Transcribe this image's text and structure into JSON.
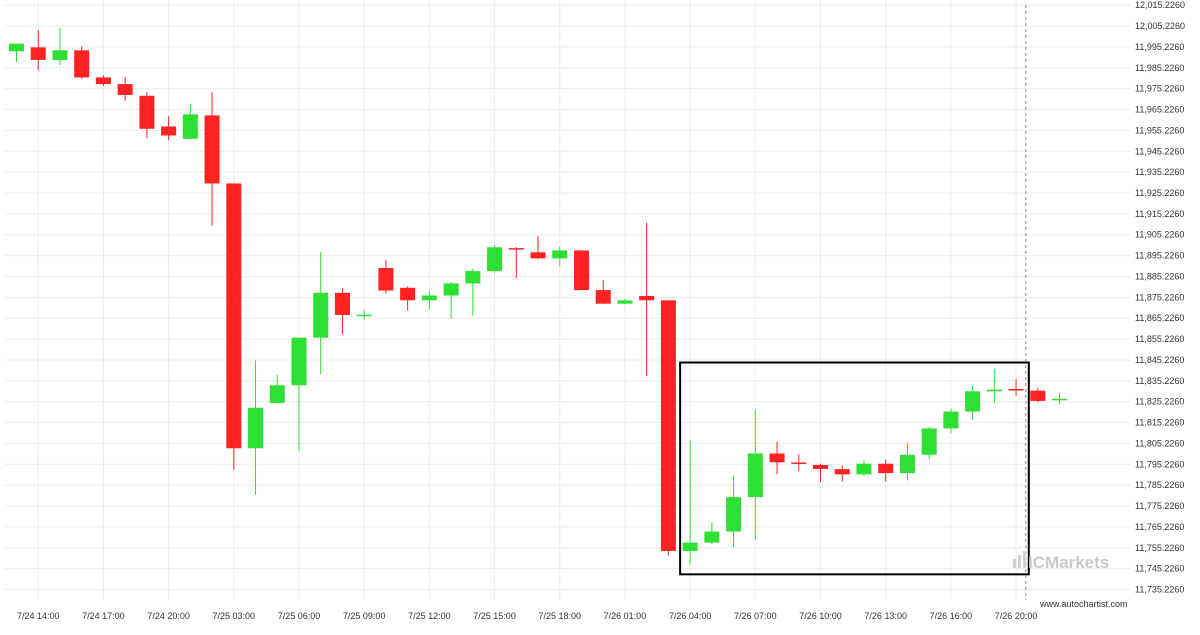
{
  "colors": {
    "up": "#2ee033",
    "down": "#ff2222",
    "grid": "#ececec",
    "pattern_box": "#000000",
    "cursor": "#888888",
    "brand": "#c9c9c9"
  },
  "brand": {
    "name": "ICMarkets"
  },
  "credit": "www.autochartist.com",
  "chart_data": {
    "type": "candlestick",
    "y_ticks": [
      "12,015.2260",
      "12,005.2260",
      "11,995.2260",
      "11,985.2260",
      "11,975.2260",
      "11,965.2260",
      "11,955.2260",
      "11,945.2260",
      "11,935.2260",
      "11,925.2260",
      "11,915.2260",
      "11,905.2260",
      "11,895.2260",
      "11,885.2260",
      "11,875.2260",
      "11,865.2260",
      "11,855.2260",
      "11,845.2260",
      "11,835.2260",
      "11,825.2260",
      "11,815.2260",
      "11,805.2260",
      "11,795.2260",
      "11,785.2260",
      "11,775.2260",
      "11,765.2260",
      "11,755.2260",
      "11,745.2260",
      "11,735.2260"
    ],
    "ylim": [
      11730.2,
      12017.7
    ],
    "x_ticks": [
      {
        "label": "7/24 14:00",
        "index": 1
      },
      {
        "label": "7/24 17:00",
        "index": 4
      },
      {
        "label": "7/24 20:00",
        "index": 7
      },
      {
        "label": "7/25 03:00",
        "index": 10
      },
      {
        "label": "7/25 06:00",
        "index": 13
      },
      {
        "label": "7/25 09:00",
        "index": 16
      },
      {
        "label": "7/25 12:00",
        "index": 19
      },
      {
        "label": "7/25 15:00",
        "index": 22
      },
      {
        "label": "7/25 18:00",
        "index": 25
      },
      {
        "label": "7/26 01:00",
        "index": 28
      },
      {
        "label": "7/26 04:00",
        "index": 31
      },
      {
        "label": "7/26 07:00",
        "index": 34
      },
      {
        "label": "7/26 10:00",
        "index": 37
      },
      {
        "label": "7/26 13:00",
        "index": 40
      },
      {
        "label": "7/26 16:00",
        "index": 43
      },
      {
        "label": "7/26 20:00",
        "index": 46
      }
    ],
    "candles": [
      {
        "o": 11993.1,
        "h": 11995.0,
        "l": 11988.0,
        "c": 11996.8
      },
      {
        "o": 11995.0,
        "h": 12003.3,
        "l": 11984.0,
        "c": 11989.0
      },
      {
        "o": 11989.0,
        "h": 12004.5,
        "l": 11986.5,
        "c": 11993.6
      },
      {
        "o": 11993.6,
        "h": 11995.5,
        "l": 11980.0,
        "c": 11980.6
      },
      {
        "o": 11980.6,
        "h": 11981.5,
        "l": 11976.5,
        "c": 11977.4
      },
      {
        "o": 11977.4,
        "h": 11980.8,
        "l": 11969.5,
        "c": 11972.2
      },
      {
        "o": 11971.8,
        "h": 11973.5,
        "l": 11951.5,
        "c": 11956.0
      },
      {
        "o": 11957.1,
        "h": 11962.0,
        "l": 11950.5,
        "c": 11952.8
      },
      {
        "o": 11951.2,
        "h": 11968.0,
        "l": 11951.0,
        "c": 11962.9
      },
      {
        "o": 11962.4,
        "h": 11973.5,
        "l": 11909.5,
        "c": 11929.8
      },
      {
        "o": 11929.8,
        "h": 11929.8,
        "l": 11792.5,
        "c": 11802.9
      },
      {
        "o": 11802.9,
        "h": 11845.0,
        "l": 11780.5,
        "c": 11822.3
      },
      {
        "o": 11824.6,
        "h": 11838.0,
        "l": 11824.5,
        "c": 11833.1
      },
      {
        "o": 11833.1,
        "h": 11856.0,
        "l": 11801.5,
        "c": 11855.9
      },
      {
        "o": 11855.9,
        "h": 11897.0,
        "l": 11838.5,
        "c": 11877.4
      },
      {
        "o": 11877.4,
        "h": 11879.5,
        "l": 11857.5,
        "c": 11866.8
      },
      {
        "o": 11866.8,
        "h": 11869.5,
        "l": 11864.5,
        "c": 11866.9
      },
      {
        "o": 11889.3,
        "h": 11893.0,
        "l": 11877.0,
        "c": 11878.5
      },
      {
        "o": 11879.8,
        "h": 11880.5,
        "l": 11869.0,
        "c": 11873.8
      },
      {
        "o": 11873.8,
        "h": 11878.5,
        "l": 11869.5,
        "c": 11876.1
      },
      {
        "o": 11876.1,
        "h": 11882.5,
        "l": 11865.0,
        "c": 11881.9
      },
      {
        "o": 11881.9,
        "h": 11889.0,
        "l": 11866.5,
        "c": 11887.8
      },
      {
        "o": 11887.8,
        "h": 11900.5,
        "l": 11887.0,
        "c": 11899.2
      },
      {
        "o": 11898.8,
        "h": 11899.3,
        "l": 11884.5,
        "c": 11898.5
      },
      {
        "o": 11896.8,
        "h": 11904.5,
        "l": 11893.5,
        "c": 11893.9
      },
      {
        "o": 11893.9,
        "h": 11899.5,
        "l": 11890.0,
        "c": 11897.7
      },
      {
        "o": 11897.7,
        "h": 11897.7,
        "l": 11878.5,
        "c": 11878.7
      },
      {
        "o": 11878.7,
        "h": 11883.5,
        "l": 11872.0,
        "c": 11872.2
      },
      {
        "o": 11872.2,
        "h": 11874.5,
        "l": 11872.0,
        "c": 11873.7
      },
      {
        "o": 11875.9,
        "h": 11911.0,
        "l": 11837.5,
        "c": 11873.8
      },
      {
        "o": 11873.8,
        "h": 11873.8,
        "l": 11751.5,
        "c": 11753.7
      },
      {
        "o": 11753.7,
        "h": 11806.5,
        "l": 11747.0,
        "c": 11757.7
      },
      {
        "o": 11757.7,
        "h": 11767.5,
        "l": 11757.0,
        "c": 11763.0
      },
      {
        "o": 11763.0,
        "h": 11790.0,
        "l": 11755.5,
        "c": 11779.5
      },
      {
        "o": 11779.5,
        "h": 11821.5,
        "l": 11759.0,
        "c": 11800.4
      },
      {
        "o": 11800.4,
        "h": 11806.0,
        "l": 11790.5,
        "c": 11796.2
      },
      {
        "o": 11796.1,
        "h": 11800.0,
        "l": 11792.0,
        "c": 11795.4
      },
      {
        "o": 11794.9,
        "h": 11795.5,
        "l": 11786.5,
        "c": 11793.0
      },
      {
        "o": 11792.9,
        "h": 11794.5,
        "l": 11787.0,
        "c": 11790.4
      },
      {
        "o": 11790.4,
        "h": 11797.0,
        "l": 11789.5,
        "c": 11795.5
      },
      {
        "o": 11795.5,
        "h": 11797.5,
        "l": 11787.0,
        "c": 11791.0
      },
      {
        "o": 11791.0,
        "h": 11805.5,
        "l": 11787.5,
        "c": 11799.8
      },
      {
        "o": 11799.8,
        "h": 11813.0,
        "l": 11797.5,
        "c": 11812.4
      },
      {
        "o": 11812.4,
        "h": 11822.0,
        "l": 11810.0,
        "c": 11820.5
      },
      {
        "o": 11820.5,
        "h": 11833.0,
        "l": 11816.5,
        "c": 11830.2
      },
      {
        "o": 11830.2,
        "h": 11841.0,
        "l": 11824.5,
        "c": 11831.0
      },
      {
        "o": 11831.3,
        "h": 11836.0,
        "l": 11828.0,
        "c": 11831.0
      },
      {
        "o": 11830.5,
        "h": 11831.7,
        "l": 11825.0,
        "c": 11825.6
      },
      {
        "o": 11826.3,
        "h": 11829.5,
        "l": 11823.8,
        "c": 11826.6
      }
    ],
    "pattern_box": {
      "from_index": 31,
      "to_index": 47,
      "high": 11844.0,
      "low": 11742.5
    },
    "cursor_index": 47,
    "grid": true
  }
}
